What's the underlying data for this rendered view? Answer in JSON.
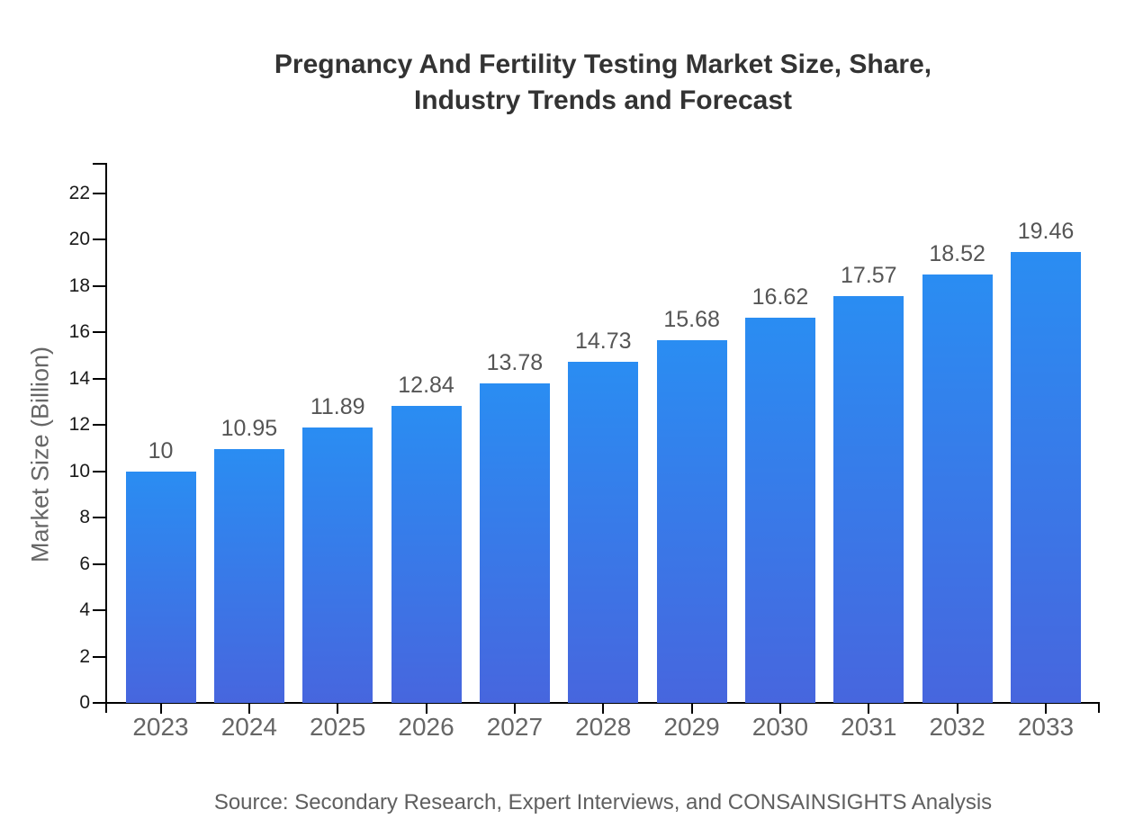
{
  "title": {
    "line1": "Pregnancy And Fertility Testing Market Size, Share,",
    "line2": "Industry Trends and Forecast"
  },
  "source": "Source: Secondary Research, Expert Interviews, and CONSAINSIGHTS Analysis",
  "colors": {
    "bar_gradient_top": "#2a8df2",
    "bar_gradient_bottom": "#4766de",
    "axis": "#000000",
    "title_text": "#333333",
    "tick_label": "#1a1a1a",
    "category_label": "#666666",
    "value_label": "#555555",
    "source_text": "#5f5f5f"
  },
  "chart_data": {
    "type": "bar",
    "title": "Pregnancy And Fertility Testing Market Size, Share, Industry Trends and Forecast",
    "categories": [
      "2023",
      "2024",
      "2025",
      "2026",
      "2027",
      "2028",
      "2029",
      "2030",
      "2031",
      "2032",
      "2033"
    ],
    "values": [
      10,
      10.95,
      11.89,
      12.84,
      13.78,
      14.73,
      15.68,
      16.62,
      17.57,
      18.52,
      19.46
    ],
    "value_labels": [
      "10",
      "10.95",
      "11.89",
      "12.84",
      "13.78",
      "14.73",
      "15.68",
      "16.62",
      "17.57",
      "18.52",
      "19.46"
    ],
    "xlabel": "",
    "ylabel": "Market Size (Billion)",
    "ylim": [
      0,
      23.3
    ],
    "yticks": [
      0,
      2,
      4,
      6,
      8,
      10,
      12,
      14,
      16,
      18,
      20,
      22
    ],
    "grid": false,
    "legend_position": "none"
  }
}
